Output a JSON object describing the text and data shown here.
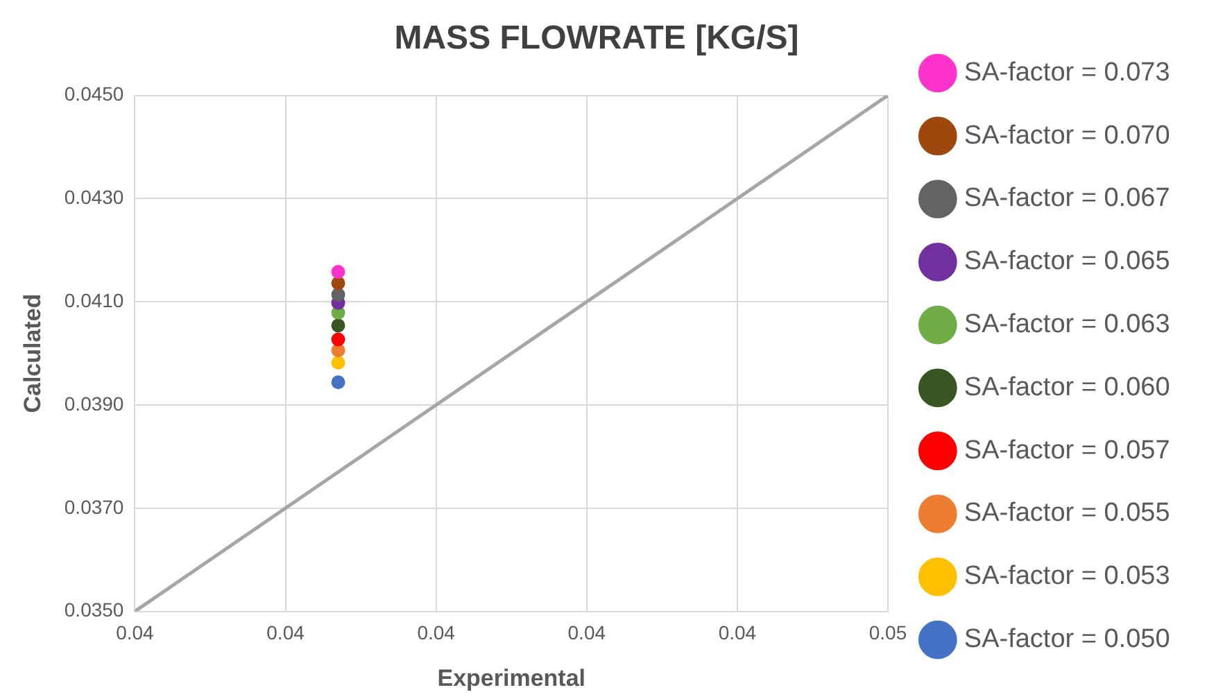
{
  "chart_data": {
    "type": "scatter",
    "title": "MASS FLOWRATE [KG/S]",
    "xlabel": "Experimental",
    "ylabel": "Calculated",
    "xlim": [
      0.035,
      0.045
    ],
    "xticks": [
      {
        "value": 0.035,
        "label": "0.04"
      },
      {
        "value": 0.037,
        "label": "0.04"
      },
      {
        "value": 0.039,
        "label": "0.04"
      },
      {
        "value": 0.041,
        "label": "0.04"
      },
      {
        "value": 0.043,
        "label": "0.04"
      },
      {
        "value": 0.045,
        "label": "0.05"
      }
    ],
    "ylim": [
      0.035,
      0.045
    ],
    "yticks": [
      {
        "value": 0.035,
        "label": "0.0350"
      },
      {
        "value": 0.037,
        "label": "0.0370"
      },
      {
        "value": 0.039,
        "label": "0.0390"
      },
      {
        "value": 0.041,
        "label": "0.0410"
      },
      {
        "value": 0.043,
        "label": "0.0430"
      },
      {
        "value": 0.045,
        "label": "0.0450"
      }
    ],
    "grid": true,
    "legend": "right",
    "marker": "circle",
    "series": [
      {
        "type": "line",
        "color": "#a6a6a6",
        "x": [
          0.035,
          0.045
        ],
        "values": [
          0.035,
          0.045
        ],
        "marker": "none"
      },
      {
        "name": "SA-factor = 0.073",
        "color": "#ff33cc",
        "x": [
          0.0377
        ],
        "values": [
          0.04158
        ]
      },
      {
        "name": "SA-factor = 0.070",
        "color": "#9e480e",
        "x": [
          0.0377
        ],
        "values": [
          0.04136
        ]
      },
      {
        "name": "SA-factor = 0.067",
        "color": "#636363",
        "x": [
          0.0377
        ],
        "values": [
          0.04114
        ]
      },
      {
        "name": "SA-factor = 0.065",
        "color": "#7030a0",
        "x": [
          0.0377
        ],
        "values": [
          0.04098
        ]
      },
      {
        "name": "SA-factor = 0.063",
        "color": "#70ad47",
        "x": [
          0.0377
        ],
        "values": [
          0.04079
        ]
      },
      {
        "name": "SA-factor = 0.060",
        "color": "#375623",
        "x": [
          0.0377
        ],
        "values": [
          0.04054
        ]
      },
      {
        "name": "SA-factor = 0.057",
        "color": "#ff0000",
        "x": [
          0.0377
        ],
        "values": [
          0.04027
        ]
      },
      {
        "name": "SA-factor = 0.055",
        "color": "#ed7d31",
        "x": [
          0.0377
        ],
        "values": [
          0.04006
        ]
      },
      {
        "name": "SA-factor = 0.053",
        "color": "#ffc000",
        "x": [
          0.0377
        ],
        "values": [
          0.03982
        ]
      },
      {
        "name": "SA-factor = 0.050",
        "color": "#4472c4",
        "x": [
          0.0377
        ],
        "values": [
          0.03944
        ]
      }
    ]
  }
}
